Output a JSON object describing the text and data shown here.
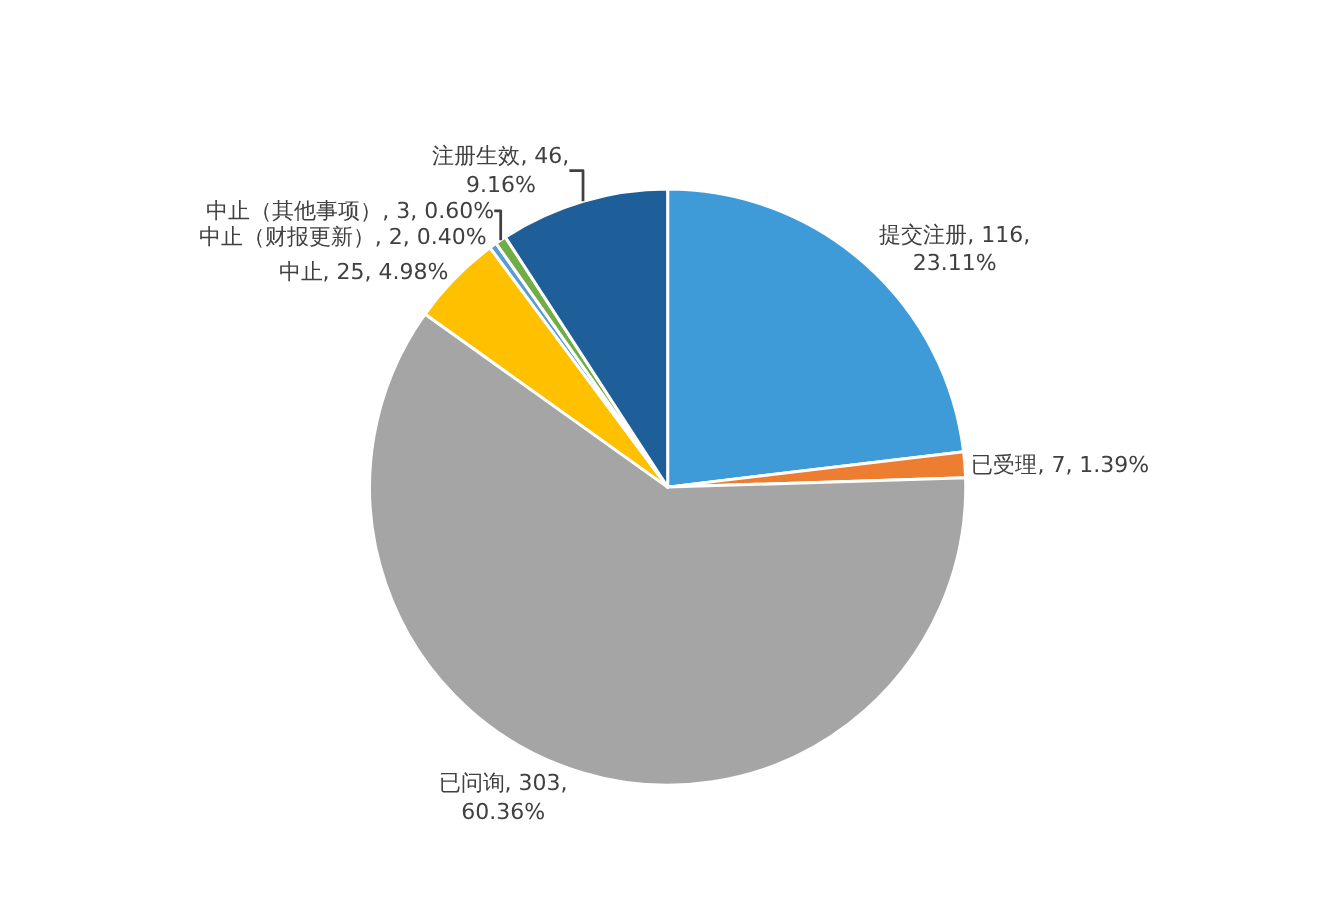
{
  "chart_data": {
    "type": "pie",
    "categories": [
      "提交注册",
      "已受理",
      "已问询",
      "中止",
      "中止（财报更新）",
      "中止（其他事项）",
      "注册生效"
    ],
    "values": [
      116,
      7,
      303,
      25,
      2,
      3,
      46
    ],
    "colors": [
      "#3f9ad8",
      "#ed7d31",
      "#a5a5a5",
      "#ffc000",
      "#5b9bd5",
      "#70ad47",
      "#1f5f99"
    ],
    "value_labels": [
      "116,\n23.11%",
      "7, 1.39%",
      "303,\n60.36%",
      "25, 4.98%",
      "2, 0.40%",
      "3, 0.60%",
      "46,\n9.16%"
    ],
    "legend": false
  }
}
